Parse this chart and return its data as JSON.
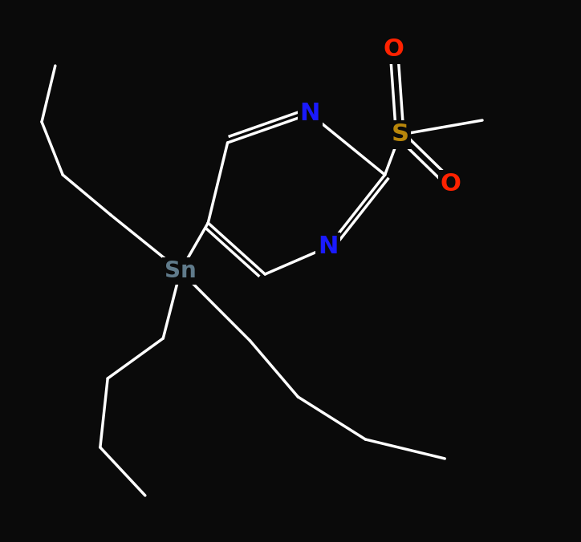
{
  "bg_color": "#0a0a0a",
  "bond_color": "#ffffff",
  "bond_width": 2.5,
  "atom_colors": {
    "N": "#1a1aff",
    "O": "#ff2200",
    "S": "#b8860b",
    "Sn": "#607b8b",
    "C": "#ffffff"
  },
  "atom_fontsizes": {
    "N": 22,
    "O": 22,
    "S": 22,
    "Sn": 20,
    "C": 14
  },
  "figsize": [
    7.24,
    6.76
  ],
  "dpi": 100
}
